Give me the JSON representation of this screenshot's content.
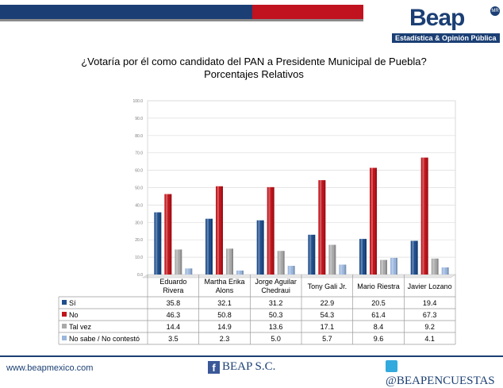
{
  "header": {
    "logo_text": "Beap",
    "logo_badge": "MR",
    "logo_subtitle": "Estadística & Opinión Pública"
  },
  "footer": {
    "url": "www.beapmexico.com",
    "facebook": "BEAP S.C.",
    "twitter": "@BEAPENCUESTAS"
  },
  "chart_data": {
    "type": "bar",
    "title": "¿Votaría por él como candidato del PAN a Presidente Municipal de Puebla?",
    "subtitle": "Porcentajes Relativos",
    "categories": [
      [
        "Eduardo",
        "Rivera"
      ],
      [
        "Martha Erika",
        "Alons"
      ],
      [
        "Jorge Aguilar",
        "Chedraui"
      ],
      [
        "Tony Gali Jr."
      ],
      [
        "Mario Riestra"
      ],
      [
        "Javier Lozano"
      ]
    ],
    "series": [
      {
        "name": "Sí",
        "color": "#1f4e8c",
        "values": [
          35.8,
          32.1,
          31.2,
          22.9,
          20.5,
          19.4
        ],
        "labels": [
          "35.8",
          "32.1",
          "31.2",
          "22.9",
          "20.5",
          "19.4"
        ]
      },
      {
        "name": "No",
        "color": "#c0141b",
        "values": [
          46.3,
          50.8,
          50.3,
          54.3,
          61.4,
          67.3
        ],
        "labels": [
          "46.3",
          "50.8",
          "50.3",
          "54.3",
          "61.4",
          "67.3"
        ]
      },
      {
        "name": "Tal vez",
        "color": "#a9a9a9",
        "values": [
          14.4,
          14.9,
          13.6,
          17.1,
          8.4,
          9.2
        ],
        "labels": [
          "14.4",
          "14.9",
          "13.6",
          "17.1",
          "8.4",
          "9.2"
        ]
      },
      {
        "name": "No sabe / No contestó",
        "color": "#9ab6dd",
        "values": [
          3.5,
          2.3,
          5.0,
          5.7,
          9.6,
          4.1
        ],
        "labels": [
          "3.5",
          "2.3",
          "5.0",
          "5.7",
          "9.6",
          "4.1"
        ]
      }
    ],
    "yticks": [
      "0.0",
      "10.0",
      "20.0",
      "30.0",
      "40.0",
      "50.0",
      "60.0",
      "70.0",
      "80.0",
      "90.0",
      "100.0"
    ],
    "ylim": [
      0,
      100
    ],
    "grid": true,
    "legend": "data-table"
  }
}
